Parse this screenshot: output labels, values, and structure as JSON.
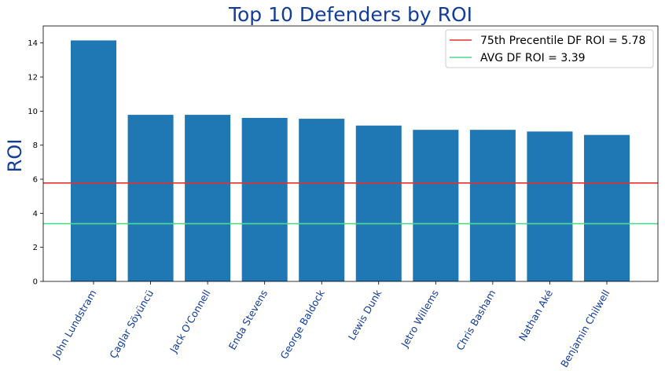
{
  "chart_data": {
    "type": "bar",
    "title": "Top 10 Defenders by ROI",
    "xlabel": "",
    "ylabel": "ROI",
    "ylim": [
      0,
      15
    ],
    "yticks": [
      0,
      2,
      4,
      6,
      8,
      10,
      12,
      14
    ],
    "grid": false,
    "legend_position": "top-right",
    "categories": [
      "John Lundstram",
      "Çaglar Söyüncü",
      "Jack O'Connell",
      "Enda Stevens",
      "George Baldock",
      "Lewis Dunk",
      "Jetro Willems",
      "Chris Basham",
      "Nathan Aké",
      "Benjamin Chilwell"
    ],
    "values": [
      14.15,
      9.78,
      9.78,
      9.6,
      9.55,
      9.15,
      8.9,
      8.9,
      8.8,
      8.6
    ],
    "bar_color": "#1f77b4",
    "reference_lines": [
      {
        "label": "75th Precentile DF ROI = 5.78",
        "value": 5.78,
        "color": "#e8302a"
      },
      {
        "label": "AVG DF ROI = 3.39",
        "value": 3.39,
        "color": "#4fd98f"
      }
    ]
  }
}
